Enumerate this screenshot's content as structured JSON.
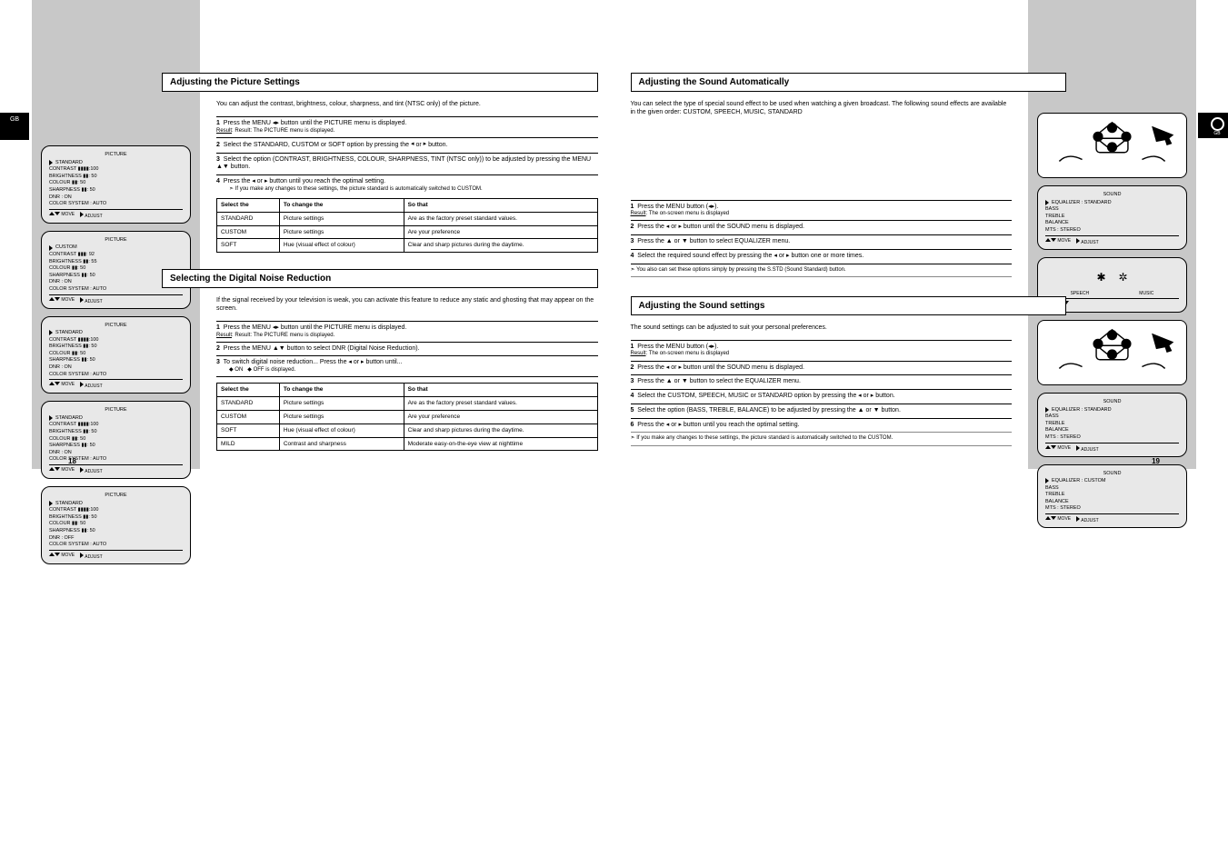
{
  "page_left_num": "18",
  "page_right_num": "19",
  "tab_left": "GB",
  "tab_right": "GB",
  "sec1": {
    "title": "Adjusting the Picture Settings",
    "intro": "You can adjust the contrast, brightness, colour, sharpness, and tint (NTSC only) of the picture.",
    "s1": "Press the MENU ◂▸ button until the PICTURE menu is displayed.",
    "s1r": "Result: The PICTURE menu is displayed.",
    "s2_a": "Select the STANDARD, CUSTOM or SOFT option by pressing the",
    "s2_b": "◂ or ▸ button.",
    "s3": "Select the option (CONTRAST, BRIGHTNESS, COLOUR, SHARPNESS, TINT (NTSC only)) to be adjusted by pressing the MENU ▲▼ button.",
    "s4a": "Press the ◂ or ▸ button until you reach the optimal setting.",
    "s4b": "If you make any changes to these settings, the picture standard is automatically switched to CUSTOM.",
    "table": {
      "headers": [
        "Select the",
        "To change the",
        "So that"
      ],
      "rows": [
        [
          "STANDARD",
          "Picture settings",
          "Are as the factory preset standard values."
        ],
        [
          "CUSTOM",
          "Picture settings",
          "Are your preference"
        ],
        [
          "SOFT",
          "Hue (visual effect of colour)",
          "Clear and sharp pictures during the daytime."
        ]
      ]
    }
  },
  "sec2": {
    "title": "Selecting the Digital Noise Reduction",
    "intro": "If the signal received by your television is weak, you can activate this feature to reduce any static and ghosting that may appear on the screen.",
    "s1": "Press the MENU ◂▸ button until the PICTURE menu is displayed.",
    "s1r": "Result: The PICTURE menu is displayed.",
    "s2": "Press the MENU ▲▼ button to select DNR (Digital Noise Reduction).",
    "s3a": "To switch digital noise reduction... Press the ◂ or ▸ button until...",
    "s3b": "ON or OFF is displayed.",
    "table": {
      "headers": [
        "Select the",
        "To change the",
        "So that"
      ],
      "rows": [
        [
          "STANDARD",
          "Picture settings",
          "Are as the factory preset standard values."
        ],
        [
          "CUSTOM",
          "Picture settings",
          "Are your preference"
        ],
        [
          "SOFT",
          "Hue (visual effect of colour)",
          "Clear and sharp pictures during the daytime."
        ],
        [
          "MILD",
          "Contrast and sharpness",
          "Moderate easy-on-the-eye view at nighttime"
        ]
      ]
    }
  },
  "sec3": {
    "title": "Adjusting the Sound Automatically",
    "intro": "You can select the type of special sound effect to be used when watching a given broadcast. The following sound effects are available in the given order: CUSTOM, SPEECH, MUSIC, STANDARD",
    "s1": "Press the MENU button (◂▸).",
    "s1r": "The on-screen menu is displayed",
    "s2": "Press the ◂ or ▸ button until the SOUND menu is displayed.",
    "s3": "Press the ▲ or ▼ button to select EQUALIZER menu.",
    "s4": "Select the required sound effect by pressing the ◂ or ▸ button one or more times.",
    "note": "You also can set these options simply by pressing the S.STD (Sound Standard) button."
  },
  "sec4": {
    "title": "Adjusting the Sound settings",
    "intro": "The sound settings can be adjusted to suit your personal preferences.",
    "s1": "Press the MENU button (◂▸).",
    "s1r": "The on-screen menu is displayed",
    "s2": "Press the ◂ or ▸ button until the SOUND menu is displayed.",
    "s3": "Press the ▲ or ▼ button to select the EQUALIZER menu.",
    "s4": "Select the CUSTOM, SPEECH, MUSIC or STANDARD option by pressing the ◂ or ▸ button.",
    "s5": "Select the option (BASS, TREBLE, BALANCE) to be adjusted by pressing the ▲ or ▼ button.",
    "s6": "Press the ◂ or ▸ button until you reach the optimal setting.",
    "note": "If you make any changes to these settings, the picture standard is automatically switched to the CUSTOM."
  },
  "osd_left": [
    {
      "title": "PICTURE",
      "rows": [
        "STANDARD",
        "CONTRAST  ▮▮▮▮:100",
        "BRIGHTNESS  ▮▮: 50",
        "COLOUR  ▮▮: 50",
        "SHARPNESS  ▮▮: 50",
        "DNR  : ON",
        "COLOR SYSTEM : AUTO"
      ],
      "help": [
        "▲▼ MOVE",
        "◂▸ ADJUST"
      ]
    },
    {
      "title": "PICTURE",
      "rows": [
        "CUSTOM",
        "CONTRAST  ▮▮▮: 92",
        "BRIGHTNESS  ▮▮: 55",
        "COLOUR  ▮▮: 50",
        "SHARPNESS  ▮▮: 50",
        "DNR  : ON",
        "COLOR SYSTEM : AUTO"
      ],
      "help": [
        "▲▼ MOVE",
        "◂▸ ADJUST"
      ]
    },
    {
      "title": "PICTURE",
      "rows": [
        "STANDARD",
        "CONTRAST  ▮▮▮▮:100",
        "BRIGHTNESS  ▮▮: 50",
        "COLOUR  ▮▮: 50",
        "SHARPNESS  ▮▮: 50",
        "DNR  : ON",
        "COLOR SYSTEM : AUTO"
      ],
      "help": [
        "▲▼ MOVE",
        "◂▸ ADJUST"
      ]
    },
    {
      "title": "PICTURE",
      "rows": [
        "STANDARD",
        "CONTRAST  ▮▮▮▮:100",
        "BRIGHTNESS  ▮▮: 50",
        "COLOUR  ▮▮: 50",
        "SHARPNESS  ▮▮: 50",
        "DNR  : ON",
        "COLOR SYSTEM : AUTO"
      ],
      "help": [
        "▲▼ MOVE",
        "◂▸ ADJUST"
      ]
    },
    {
      "title": "PICTURE",
      "rows": [
        "STANDARD",
        "CONTRAST  ▮▮▮▮:100",
        "BRIGHTNESS  ▮▮: 50",
        "COLOUR  ▮▮: 50",
        "SHARPNESS  ▮▮: 50",
        "DNR  : OFF",
        "COLOR SYSTEM : AUTO"
      ],
      "help": [
        "▲▼ MOVE",
        "◂▸ ADJUST"
      ]
    }
  ],
  "osd_right": [
    {
      "type": "remote"
    },
    {
      "title": "SOUND",
      "rows": [
        "EQUALIZER : STANDARD",
        "BASS",
        "TREBLE",
        "BALANCE",
        "MTS : STEREO"
      ],
      "help": [
        "▲▼ MOVE",
        "◂▸ ADJUST"
      ]
    },
    {
      "type": "sstd",
      "rows": [
        "SPEECH",
        "MUSIC"
      ],
      "help": [
        "◂▸",
        "▲▼"
      ]
    },
    {
      "type": "remote2"
    },
    {
      "title": "SOUND",
      "rows": [
        "EQUALIZER : STANDARD",
        "BASS",
        "TREBLE",
        "BALANCE",
        "MTS : STEREO"
      ],
      "help": [
        "▲▼ MOVE",
        "◂▸ ADJUST"
      ]
    },
    {
      "title": "SOUND",
      "rows": [
        "EQUALIZER : CUSTOM",
        "BASS",
        "TREBLE",
        "BALANCE",
        "MTS : STEREO"
      ],
      "help": [
        "▲▼ MOVE",
        "◂▸ ADJUST"
      ]
    }
  ],
  "colors": {
    "grey": "#c8c8c8",
    "osd_bg": "#e8e8e8",
    "black": "#000000",
    "white": "#ffffff"
  }
}
